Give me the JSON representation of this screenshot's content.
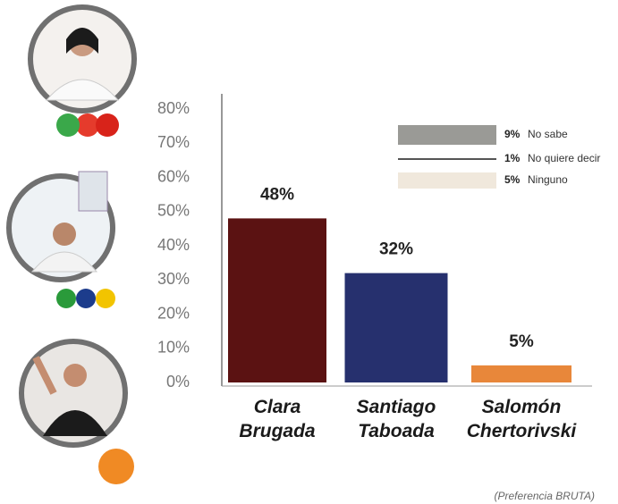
{
  "chart_data": {
    "type": "bar",
    "categories": [
      "Clara Brugada",
      "Santiago Taboada",
      "Salomón Chertorivski"
    ],
    "values": [
      48,
      32,
      5
    ],
    "value_labels": [
      "48%",
      "32%",
      "5%"
    ],
    "colors": [
      "#5b1212",
      "#26306e",
      "#e8873a"
    ],
    "ylim": [
      0,
      80
    ],
    "yticks": [
      {
        "value": 0,
        "label": "0%"
      },
      {
        "value": 10,
        "label": "10%"
      },
      {
        "value": 20,
        "label": "20%"
      },
      {
        "value": 30,
        "label": "30%"
      },
      {
        "value": 40,
        "label": "40%"
      },
      {
        "value": 50,
        "label": "50%"
      },
      {
        "value": 60,
        "label": "60%"
      },
      {
        "value": 70,
        "label": "70%"
      },
      {
        "value": 80,
        "label": "80%"
      }
    ],
    "legend": [
      {
        "percent": "9%",
        "label": "No sabe",
        "color": "#9a9a96",
        "style": "box"
      },
      {
        "percent": "1%",
        "label": "No quiere decir",
        "color": "#555555",
        "style": "line"
      },
      {
        "percent": "5%",
        "label": "Ninguno",
        "color": "#f0e8dc",
        "style": "box"
      }
    ],
    "footnote": "(Preferencia BRUTA)"
  }
}
